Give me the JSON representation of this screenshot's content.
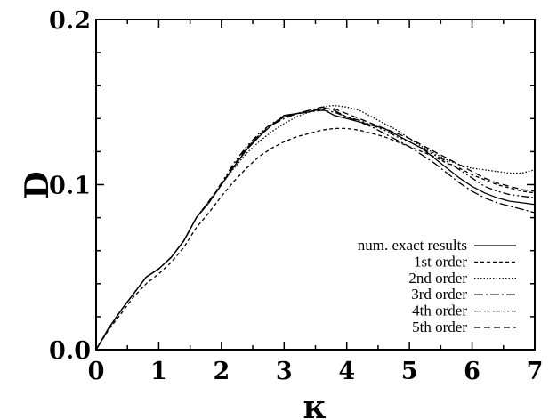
{
  "chart_data": {
    "type": "line",
    "xlabel": "κ",
    "ylabel": "D",
    "xlim": [
      0,
      7
    ],
    "ylim": [
      0,
      0.2
    ],
    "x_ticks": [
      "0",
      "1",
      "2",
      "3",
      "4",
      "5",
      "6",
      "7"
    ],
    "y_ticks": [
      "0.0",
      "0.1",
      "0.2"
    ],
    "grid": false,
    "legend_position": "bottom-right",
    "series": [
      {
        "name": "num. exact results",
        "dash": "",
        "x": [
          0,
          0.2,
          0.4,
          0.6,
          0.8,
          1.0,
          1.2,
          1.4,
          1.6,
          1.8,
          2.0,
          2.2,
          2.4,
          2.6,
          2.8,
          3.0,
          3.2,
          3.4,
          3.6,
          3.8,
          4.0,
          4.2,
          4.4,
          4.6,
          4.8,
          5.0,
          5.2,
          5.4,
          5.6,
          5.8,
          6.0,
          6.2,
          6.4,
          6.6,
          6.8,
          7.0
        ],
        "y": [
          0,
          0.013,
          0.024,
          0.034,
          0.044,
          0.049,
          0.056,
          0.066,
          0.08,
          0.089,
          0.1,
          0.111,
          0.121,
          0.129,
          0.136,
          0.142,
          0.143,
          0.144,
          0.146,
          0.142,
          0.14,
          0.138,
          0.136,
          0.134,
          0.13,
          0.126,
          0.122,
          0.116,
          0.11,
          0.104,
          0.099,
          0.095,
          0.092,
          0.09,
          0.089,
          0.088
        ]
      },
      {
        "name": "1st order",
        "dash": "4,3",
        "x": [
          0,
          0.2,
          0.4,
          0.6,
          0.8,
          1.0,
          1.2,
          1.4,
          1.6,
          1.8,
          2.0,
          2.2,
          2.4,
          2.6,
          2.8,
          3.0,
          3.2,
          3.4,
          3.6,
          3.8,
          4.0,
          4.2,
          4.4,
          4.6,
          4.8,
          5.0,
          5.2,
          5.4,
          5.6,
          5.8,
          6.0,
          6.2,
          6.4,
          6.6,
          6.8,
          7.0
        ],
        "y": [
          0,
          0.012,
          0.022,
          0.032,
          0.04,
          0.046,
          0.053,
          0.062,
          0.074,
          0.083,
          0.093,
          0.102,
          0.11,
          0.117,
          0.122,
          0.126,
          0.129,
          0.131,
          0.133,
          0.134,
          0.134,
          0.133,
          0.131,
          0.129,
          0.126,
          0.123,
          0.12,
          0.117,
          0.113,
          0.11,
          0.106,
          0.103,
          0.1,
          0.098,
          0.096,
          0.095
        ]
      },
      {
        "name": "2nd order",
        "dash": "1.5,2",
        "x": [
          0,
          0.2,
          0.4,
          0.6,
          0.8,
          1.0,
          1.2,
          1.4,
          1.6,
          1.8,
          2.0,
          2.2,
          2.4,
          2.6,
          2.8,
          3.0,
          3.2,
          3.4,
          3.6,
          3.8,
          4.0,
          4.2,
          4.4,
          4.6,
          4.8,
          5.0,
          5.2,
          5.4,
          5.6,
          5.8,
          6.0,
          6.2,
          6.4,
          6.6,
          6.8,
          7.0
        ],
        "y": [
          0,
          0.013,
          0.024,
          0.034,
          0.044,
          0.049,
          0.056,
          0.066,
          0.08,
          0.09,
          0.1,
          0.11,
          0.119,
          0.126,
          0.132,
          0.137,
          0.141,
          0.144,
          0.147,
          0.148,
          0.147,
          0.145,
          0.141,
          0.137,
          0.133,
          0.128,
          0.123,
          0.119,
          0.115,
          0.112,
          0.11,
          0.109,
          0.108,
          0.107,
          0.107,
          0.109
        ]
      },
      {
        "name": "3rd order",
        "dash": "10,3,2,3",
        "x": [
          0,
          0.2,
          0.4,
          0.6,
          0.8,
          1.0,
          1.2,
          1.4,
          1.6,
          1.8,
          2.0,
          2.2,
          2.4,
          2.6,
          2.8,
          3.0,
          3.2,
          3.4,
          3.6,
          3.8,
          4.0,
          4.2,
          4.4,
          4.6,
          4.8,
          5.0,
          5.2,
          5.4,
          5.6,
          5.8,
          6.0,
          6.2,
          6.4,
          6.6,
          6.8,
          7.0
        ],
        "y": [
          0,
          0.013,
          0.024,
          0.034,
          0.044,
          0.049,
          0.056,
          0.066,
          0.08,
          0.089,
          0.1,
          0.111,
          0.121,
          0.13,
          0.136,
          0.14,
          0.143,
          0.145,
          0.147,
          0.145,
          0.141,
          0.138,
          0.135,
          0.131,
          0.127,
          0.123,
          0.118,
          0.113,
          0.107,
          0.101,
          0.096,
          0.092,
          0.089,
          0.087,
          0.085,
          0.083
        ]
      },
      {
        "name": "4th order",
        "dash": "8,3,2,3,2,3",
        "x": [
          0,
          0.2,
          0.4,
          0.6,
          0.8,
          1.0,
          1.2,
          1.4,
          1.6,
          1.8,
          2.0,
          2.2,
          2.4,
          2.6,
          2.8,
          3.0,
          3.2,
          3.4,
          3.6,
          3.8,
          4.0,
          4.2,
          4.4,
          4.6,
          4.8,
          5.0,
          5.2,
          5.4,
          5.6,
          5.8,
          6.0,
          6.2,
          6.4,
          6.6,
          6.8,
          7.0
        ],
        "y": [
          0,
          0.013,
          0.024,
          0.034,
          0.044,
          0.049,
          0.056,
          0.066,
          0.08,
          0.09,
          0.101,
          0.113,
          0.123,
          0.131,
          0.137,
          0.141,
          0.143,
          0.144,
          0.145,
          0.144,
          0.141,
          0.139,
          0.136,
          0.133,
          0.129,
          0.126,
          0.122,
          0.118,
          0.114,
          0.109,
          0.104,
          0.099,
          0.096,
          0.094,
          0.093,
          0.092
        ]
      },
      {
        "name": "5th order",
        "dash": "7,4",
        "x": [
          0,
          0.2,
          0.4,
          0.6,
          0.8,
          1.0,
          1.2,
          1.4,
          1.6,
          1.8,
          2.0,
          2.2,
          2.4,
          2.6,
          2.8,
          3.0,
          3.2,
          3.4,
          3.6,
          3.8,
          4.0,
          4.2,
          4.4,
          4.6,
          4.8,
          5.0,
          5.2,
          5.4,
          5.6,
          5.8,
          6.0,
          6.2,
          6.4,
          6.6,
          6.8,
          7.0
        ],
        "y": [
          0,
          0.013,
          0.024,
          0.034,
          0.044,
          0.049,
          0.056,
          0.066,
          0.08,
          0.09,
          0.1,
          0.112,
          0.122,
          0.13,
          0.136,
          0.141,
          0.143,
          0.145,
          0.146,
          0.146,
          0.143,
          0.14,
          0.137,
          0.134,
          0.131,
          0.128,
          0.124,
          0.12,
          0.116,
          0.112,
          0.108,
          0.104,
          0.101,
          0.099,
          0.097,
          0.096
        ]
      }
    ]
  }
}
